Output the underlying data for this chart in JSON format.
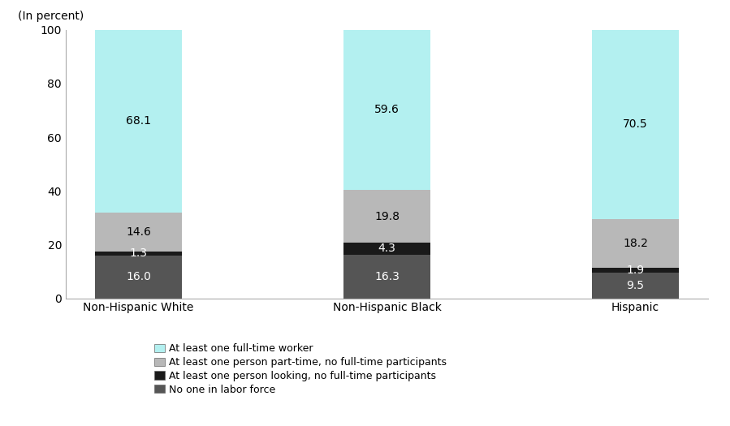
{
  "categories": [
    "Non-Hispanic White",
    "Non-Hispanic Black",
    "Hispanic"
  ],
  "segments": [
    {
      "label": "No one in labor force",
      "color": "#555555",
      "values": [
        16.0,
        16.3,
        9.5
      ],
      "text_color": "#ffffff"
    },
    {
      "label": "At least one person looking, no full-time participants",
      "color": "#1a1a1a",
      "values": [
        1.3,
        4.3,
        1.9
      ],
      "text_color": "#ffffff"
    },
    {
      "label": "At least one person part-time, no full-time participants",
      "color": "#b8b8b8",
      "values": [
        14.6,
        19.8,
        18.2
      ],
      "text_color": "#000000"
    },
    {
      "label": "At least one full-time worker",
      "color": "#b3f0f0",
      "values": [
        68.1,
        59.6,
        70.5
      ],
      "text_color": "#000000"
    }
  ],
  "legend_order": [
    3,
    2,
    1,
    0
  ],
  "ylabel": "(In percent)",
  "ylim": [
    0,
    100
  ],
  "yticks": [
    0,
    20,
    40,
    60,
    80,
    100
  ],
  "bar_width": 0.35,
  "background_color": "#ffffff",
  "label_fontsize": 10,
  "tick_fontsize": 10,
  "legend_fontsize": 9
}
